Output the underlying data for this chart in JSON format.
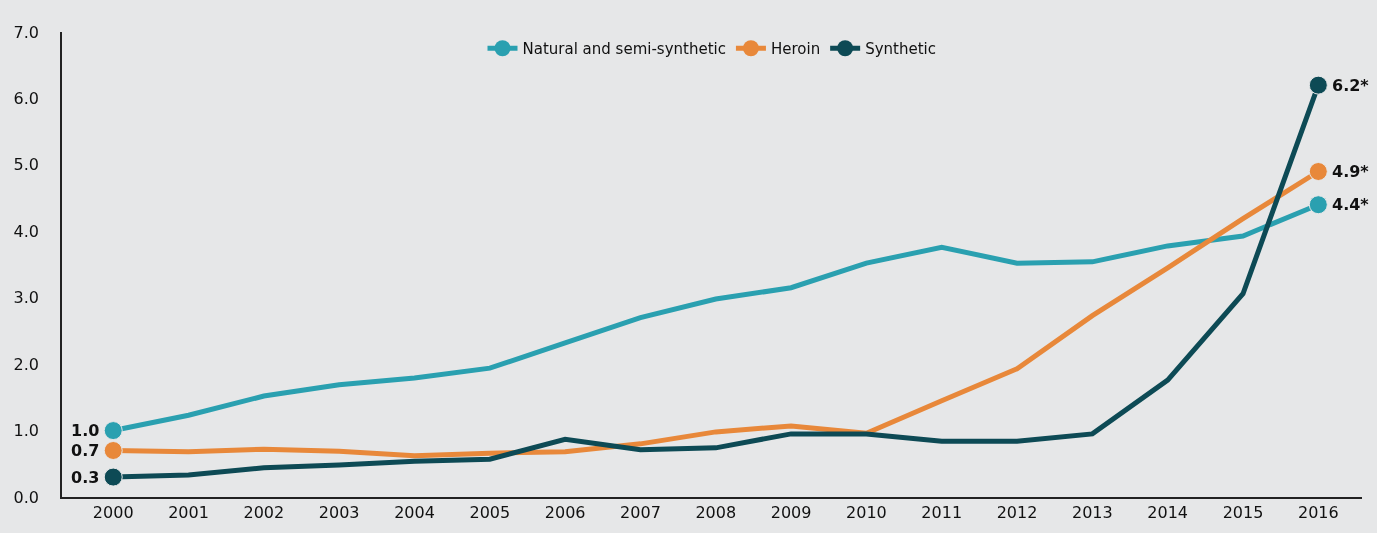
{
  "chart_data": {
    "type": "line",
    "categories": [
      "2000",
      "2001",
      "2002",
      "2003",
      "2004",
      "2005",
      "2006",
      "2007",
      "2008",
      "2009",
      "2010",
      "2011",
      "2012",
      "2013",
      "2014",
      "2015",
      "2016"
    ],
    "series": [
      {
        "name": "Natural and semi-synthetic",
        "color": "#2aa0b0",
        "values": [
          1.0,
          1.23,
          1.52,
          1.69,
          1.79,
          1.94,
          2.32,
          2.7,
          2.98,
          3.15,
          3.52,
          3.76,
          3.52,
          3.54,
          3.78,
          3.93,
          4.4
        ],
        "value_labels": [
          "1.0",
          null,
          null,
          null,
          null,
          null,
          null,
          null,
          null,
          null,
          null,
          null,
          null,
          null,
          null,
          null,
          "4.4*"
        ]
      },
      {
        "name": "Heroin",
        "color": "#e8883a",
        "values": [
          0.7,
          0.68,
          0.72,
          0.69,
          0.62,
          0.66,
          0.68,
          0.8,
          0.98,
          1.07,
          0.96,
          1.45,
          1.93,
          2.73,
          3.45,
          4.19,
          4.9
        ],
        "value_labels": [
          "0.7",
          null,
          null,
          null,
          null,
          null,
          null,
          null,
          null,
          null,
          null,
          null,
          null,
          null,
          null,
          null,
          "4.9*"
        ]
      },
      {
        "name": "Synthetic",
        "color": "#0d4a55",
        "values": [
          0.3,
          0.33,
          0.44,
          0.48,
          0.54,
          0.57,
          0.87,
          0.71,
          0.74,
          0.95,
          0.95,
          0.84,
          0.84,
          0.95,
          1.76,
          3.06,
          6.2
        ],
        "value_labels": [
          "0.3",
          null,
          null,
          null,
          null,
          null,
          null,
          null,
          null,
          null,
          null,
          null,
          null,
          null,
          null,
          null,
          "6.2*"
        ]
      }
    ],
    "ylim": [
      0,
      7
    ],
    "yticks": [
      {
        "value": 0,
        "label": "0.0"
      },
      {
        "value": 1,
        "label": "1.0"
      },
      {
        "value": 2,
        "label": "2.0"
      },
      {
        "value": 3,
        "label": "3.0"
      },
      {
        "value": 4,
        "label": "4.0"
      },
      {
        "value": 5,
        "label": "5.0"
      },
      {
        "value": 6,
        "label": "6.0"
      },
      {
        "value": 7,
        "label": "7.0"
      }
    ],
    "grid": false,
    "legend": "top",
    "line_style": "solid"
  }
}
